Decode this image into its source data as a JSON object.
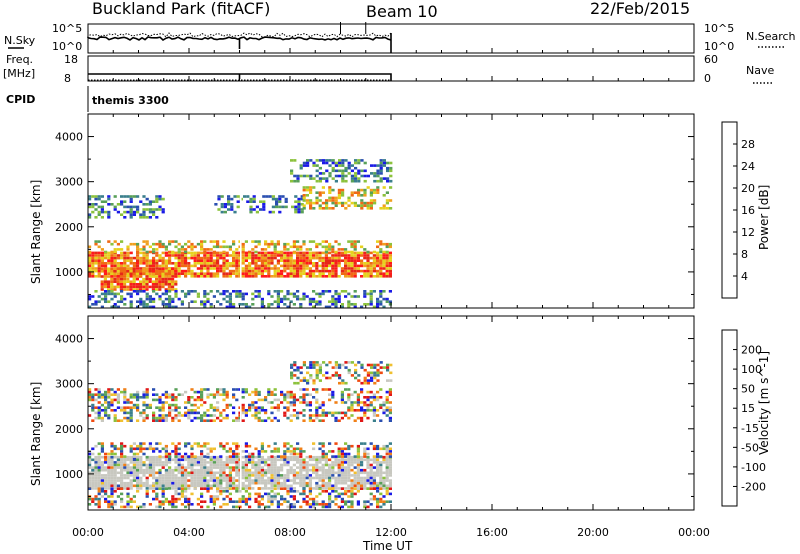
{
  "header": {
    "station": "Buckland Park (fitACF)",
    "beam": "Beam 10",
    "date": "22/Feb/2015"
  },
  "top_panels": {
    "nsky_label": "N.Sky",
    "nsky_ticks": [
      "10^5",
      "10^0"
    ],
    "nsearch_label": "N.Search",
    "nsearch_ticks": [
      "10^5",
      "10^0"
    ],
    "freq_label": "Freq.",
    "freq_unit": "[MHz]",
    "freq_ticks": [
      "18",
      "8"
    ],
    "nave_label": "Nave",
    "nave_ticks": [
      "60",
      "0"
    ],
    "cpid_label": "CPID",
    "cpid_value": "themis 3300"
  },
  "chart_data": [
    {
      "type": "heatmap",
      "quantity": "Power",
      "xlabel": "",
      "ylabel": "Slant Range [km]",
      "xlim": [
        0,
        24
      ],
      "ylim": [
        200,
        4500
      ],
      "y_ticks": [
        1000,
        2000,
        3000,
        4000
      ],
      "colorbar": {
        "label": "Power [dB]",
        "ticks": [
          "28",
          "24",
          "20",
          "16",
          "12",
          "8",
          "4"
        ]
      },
      "data_coverage_hours": [
        0,
        12
      ],
      "bands": [
        {
          "t0": 0.0,
          "t1": 12.0,
          "r0": 900,
          "r1": 1450,
          "level": "high"
        },
        {
          "t0": 0.5,
          "t1": 3.5,
          "r0": 600,
          "r1": 1100,
          "level": "high"
        },
        {
          "t0": 0.0,
          "t1": 12.0,
          "r0": 1450,
          "r1": 1700,
          "level": "mid"
        },
        {
          "t0": 0.0,
          "t1": 3.0,
          "r0": 2200,
          "r1": 2700,
          "level": "low"
        },
        {
          "t0": 5.0,
          "t1": 8.5,
          "r0": 2300,
          "r1": 2700,
          "level": "low"
        },
        {
          "t0": 8.5,
          "t1": 12.0,
          "r0": 2400,
          "r1": 2900,
          "level": "mid"
        },
        {
          "t0": 8.0,
          "t1": 12.0,
          "r0": 3000,
          "r1": 3500,
          "level": "low"
        },
        {
          "t0": 0.0,
          "t1": 12.0,
          "r0": 250,
          "r1": 600,
          "level": "low"
        }
      ]
    },
    {
      "type": "heatmap",
      "quantity": "Velocity",
      "xlabel": "Time UT",
      "ylabel": "Slant Range [km]",
      "xlim": [
        0,
        24
      ],
      "ylim": [
        200,
        4500
      ],
      "y_ticks": [
        1000,
        2000,
        3000,
        4000
      ],
      "x_ticks": [
        "00:00",
        "04:00",
        "08:00",
        "12:00",
        "16:00",
        "20:00",
        "00:00"
      ],
      "colorbar": {
        "label": "Velocity [m s^-1]",
        "ticks": [
          "200",
          "100",
          "50",
          "15",
          "-15",
          "-50",
          "-100",
          "-200"
        ]
      },
      "data_coverage_hours": [
        0,
        12
      ],
      "bands": [
        {
          "t0": 0.0,
          "t1": 12.0,
          "r0": 700,
          "r1": 1400,
          "level": "ground"
        },
        {
          "t0": 0.0,
          "t1": 12.0,
          "r0": 250,
          "r1": 700,
          "level": "mixed"
        },
        {
          "t0": 0.0,
          "t1": 12.0,
          "r0": 1400,
          "r1": 1700,
          "level": "mixed"
        },
        {
          "t0": 0.0,
          "t1": 12.0,
          "r0": 2200,
          "r1": 2900,
          "level": "mixed"
        },
        {
          "t0": 8.0,
          "t1": 12.0,
          "r0": 3000,
          "r1": 3500,
          "level": "mixed"
        }
      ]
    }
  ],
  "colors": {
    "power_scale": [
      "#1a1ae6",
      "#2a4fb0",
      "#3a7f8c",
      "#58a058",
      "#8cc23c",
      "#e6d21e",
      "#f0a01e",
      "#f06a14",
      "#e62818",
      "#ff1a1a"
    ],
    "velocity_scale": [
      "#e01616",
      "#f04a10",
      "#f08018",
      "#f0c030",
      "#c8c8c0",
      "#8cc23c",
      "#58a058",
      "#3a7f8c",
      "#2a4fb0",
      "#1a1ae6"
    ],
    "ground": "#c8c8c0"
  }
}
